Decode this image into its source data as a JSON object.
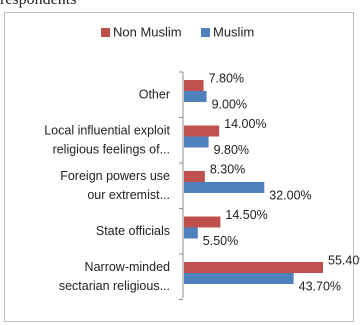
{
  "header": {
    "cut_text": "respondents"
  },
  "colors": {
    "non_muslim": "#c0504d",
    "muslim": "#4f81bd",
    "axis": "#8c8c8c"
  },
  "chart_data": {
    "type": "bar",
    "orientation": "horizontal",
    "value_suffix": "%",
    "categories": [
      [
        "Other"
      ],
      [
        "Local influential exploit",
        "religious feelings of..."
      ],
      [
        "Foreign powers use",
        "our extremist..."
      ],
      [
        "State officials"
      ],
      [
        "Narrow-minded",
        "sectarian religious..."
      ]
    ],
    "series": [
      {
        "name": "Non Muslim",
        "color": "#c0504d",
        "values": [
          7.8,
          14.0,
          8.3,
          14.5,
          55.4
        ]
      },
      {
        "name": "Muslim",
        "color": "#4f81bd",
        "values": [
          9.0,
          9.8,
          32.0,
          5.5,
          43.7
        ]
      }
    ],
    "xlim": [
      0,
      60
    ],
    "grid": false,
    "legend_position": "top"
  }
}
